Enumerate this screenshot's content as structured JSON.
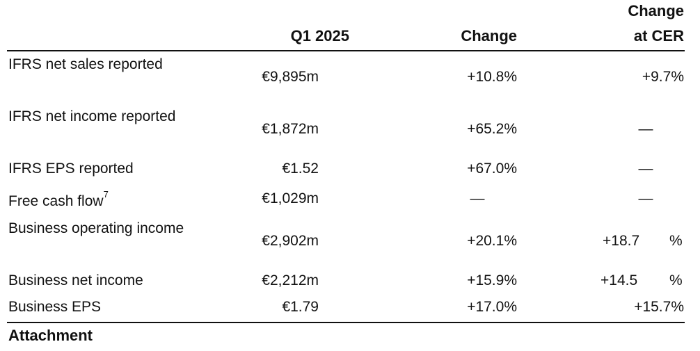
{
  "table": {
    "headers": {
      "q1": "Q1 2025",
      "change": "Change",
      "change_cer_line1": "Change",
      "change_cer_line2": "at CER"
    },
    "rows": [
      {
        "label": "IFRS net sales reported",
        "value": "€9,895m",
        "change": "+10.8%",
        "cer": "+9.7%"
      },
      {
        "label": "IFRS net income reported",
        "value": "€1,872m",
        "change": "+65.2%",
        "cer": "—"
      },
      {
        "label": "IFRS EPS reported",
        "value": "€1.52",
        "change": "+67.0%",
        "cer": "—"
      },
      {
        "label": "Free cash flow",
        "footnote": "7",
        "value": "€1,029m",
        "change": "—",
        "cer": "—"
      },
      {
        "label": "Business operating income",
        "value": "€2,902m",
        "change": "+20.1%",
        "cer_number": "+18.7",
        "cer_unit": "%"
      },
      {
        "label": "Business net income",
        "value": "€2,212m",
        "change": "+15.9%",
        "cer_number": "+14.5",
        "cer_unit": "%"
      },
      {
        "label": "Business EPS",
        "value": "€1.79",
        "change": "+17.0%",
        "cer": "+15.7%"
      }
    ]
  },
  "footer": {
    "label": "Attachment"
  }
}
